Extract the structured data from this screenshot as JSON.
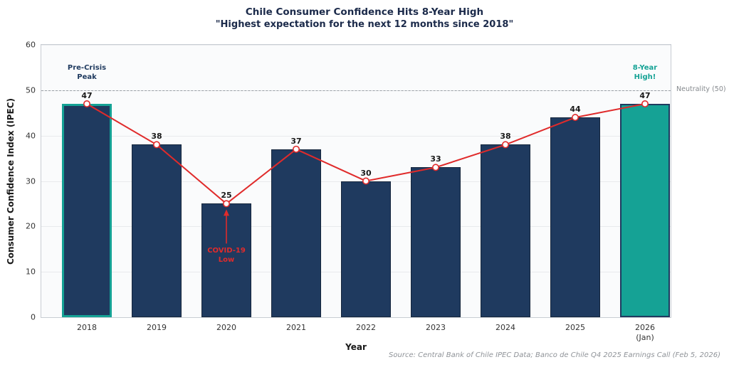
{
  "chart_data": {
    "type": "bar",
    "title": "Chile Consumer Confidence Hits 8-Year High",
    "subtitle": "\"Highest expectation for the next 12 months since 2018\"",
    "xlabel": "Year",
    "ylabel": "Consumer Confidence Index (IPEC)",
    "categories": [
      "2018",
      "2019",
      "2020",
      "2021",
      "2022",
      "2023",
      "2024",
      "2025",
      "2026\n(Jan)"
    ],
    "values": [
      47,
      38,
      25,
      37,
      30,
      33,
      38,
      44,
      47
    ],
    "ylim": [
      0,
      60
    ],
    "yticks": [
      0,
      10,
      20,
      30,
      40,
      50,
      60
    ],
    "grid": "horizontal",
    "legend": "none",
    "overlay_line": {
      "name": "trend-line",
      "values": [
        47,
        38,
        25,
        37,
        30,
        33,
        38,
        44,
        47
      ],
      "color": "#e02b2b",
      "marker": "open-circle"
    },
    "reference_line": {
      "value": 50,
      "label": "Neutrality (50)",
      "style": "dashed",
      "color": "#9aa0a6"
    },
    "annotations": [
      {
        "id": "pre-crisis-peak",
        "text": "Pre-Crisis\nPeak",
        "category": "2018",
        "index": 0,
        "color": "#1f3a5f",
        "position": "above",
        "arrow": false
      },
      {
        "id": "covid-low",
        "text": "COVID-19\nLow",
        "category": "2020",
        "index": 2,
        "color": "#e02b2b",
        "position": "below",
        "arrow": true
      },
      {
        "id": "eight-year-high",
        "text": "8-Year\nHigh!",
        "category": "2026 (Jan)",
        "index": 8,
        "color": "#15a295",
        "position": "above",
        "arrow": false
      }
    ],
    "bar_highlights": {
      "edge_highlight_index": 0,
      "fill_highlight_index": 8
    },
    "colors": {
      "bar_fill": "#1f3a5f",
      "bar_edge": "#16263c",
      "highlight_teal": "#15a295",
      "line_red": "#e02b2b",
      "title_navy": "#1b2a4a",
      "grid": "#e8eaed",
      "plot_bg": "#fafbfc",
      "axis_text": "#333333",
      "muted_text": "#8a8f94"
    },
    "source": "Source: Central Bank of Chile IPEC Data; Banco de Chile Q4 2025 Earnings Call (Feb 5, 2026)"
  }
}
